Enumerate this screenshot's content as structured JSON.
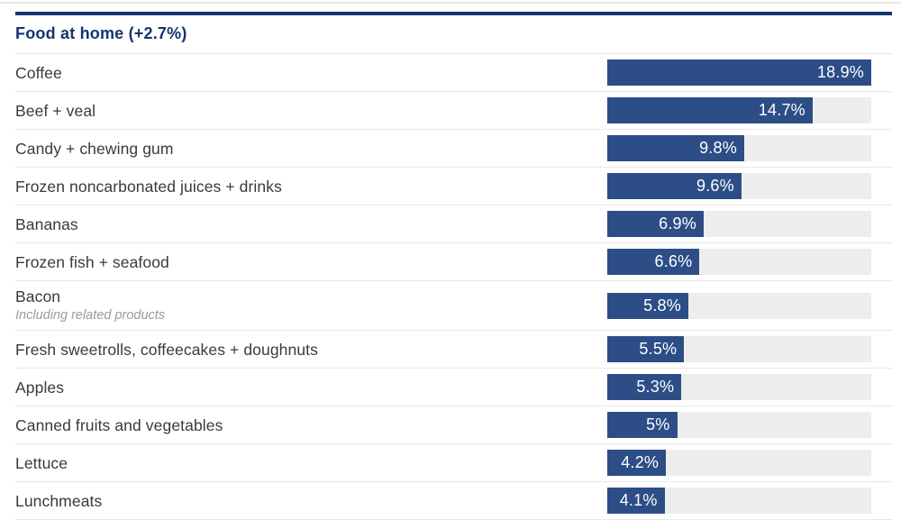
{
  "section": {
    "title": "Food at home (+2.7%)"
  },
  "chart_data": {
    "type": "bar",
    "orientation": "horizontal",
    "title": "Food at home (+2.7%)",
    "group_change_label": "+2.7%",
    "unit": "%",
    "axis_max": 18.9,
    "grid": false,
    "legend": false,
    "items": [
      {
        "label": "Coffee",
        "sublabel": "",
        "value": 18.9,
        "value_label": "18.9%"
      },
      {
        "label": "Beef + veal",
        "sublabel": "",
        "value": 14.7,
        "value_label": "14.7%"
      },
      {
        "label": "Candy + chewing gum",
        "sublabel": "",
        "value": 9.8,
        "value_label": "9.8%"
      },
      {
        "label": "Frozen noncarbonated juices + drinks",
        "sublabel": "",
        "value": 9.6,
        "value_label": "9.6%"
      },
      {
        "label": "Bananas",
        "sublabel": "",
        "value": 6.9,
        "value_label": "6.9%"
      },
      {
        "label": "Frozen fish + seafood",
        "sublabel": "",
        "value": 6.6,
        "value_label": "6.6%"
      },
      {
        "label": "Bacon",
        "sublabel": "Including related products",
        "value": 5.8,
        "value_label": "5.8%"
      },
      {
        "label": "Fresh sweetrolls, coffeecakes + doughnuts",
        "sublabel": "",
        "value": 5.5,
        "value_label": "5.5%"
      },
      {
        "label": "Apples",
        "sublabel": "",
        "value": 5.3,
        "value_label": "5.3%"
      },
      {
        "label": "Canned fruits and vegetables",
        "sublabel": "",
        "value": 5,
        "value_label": "5%"
      },
      {
        "label": "Lettuce",
        "sublabel": "",
        "value": 4.2,
        "value_label": "4.2%"
      },
      {
        "label": "Lunchmeats",
        "sublabel": "",
        "value": 4.1,
        "value_label": "4.1%"
      }
    ]
  },
  "colors": {
    "bar_fill": "#2d4d87",
    "bar_track": "#ededed",
    "accent_navy": "#14356e",
    "label_text": "#3a3a3a",
    "sublabel_text": "#9b9b9b",
    "row_divider": "#e8e8e8",
    "top_hairline": "#ebe8e1",
    "value_text": "#ffffff"
  }
}
